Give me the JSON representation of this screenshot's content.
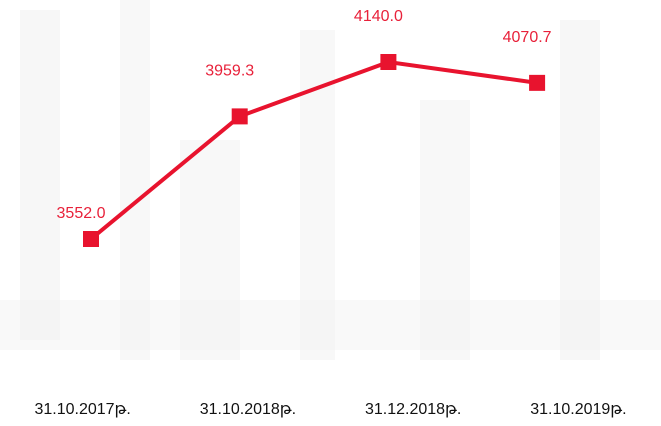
{
  "chart_data": {
    "type": "line",
    "categories": [
      "31.10.2017թ.",
      "31.10.2018թ.",
      "31.12.2018թ.",
      "31.10.2019թ."
    ],
    "series": [
      {
        "color": "#e8132e",
        "values": [
          3552.0,
          3959.3,
          4140.0,
          4070.7
        ],
        "value_labels": [
          "3552.0",
          "3959.3",
          "4140.0",
          "4070.7"
        ]
      }
    ]
  }
}
